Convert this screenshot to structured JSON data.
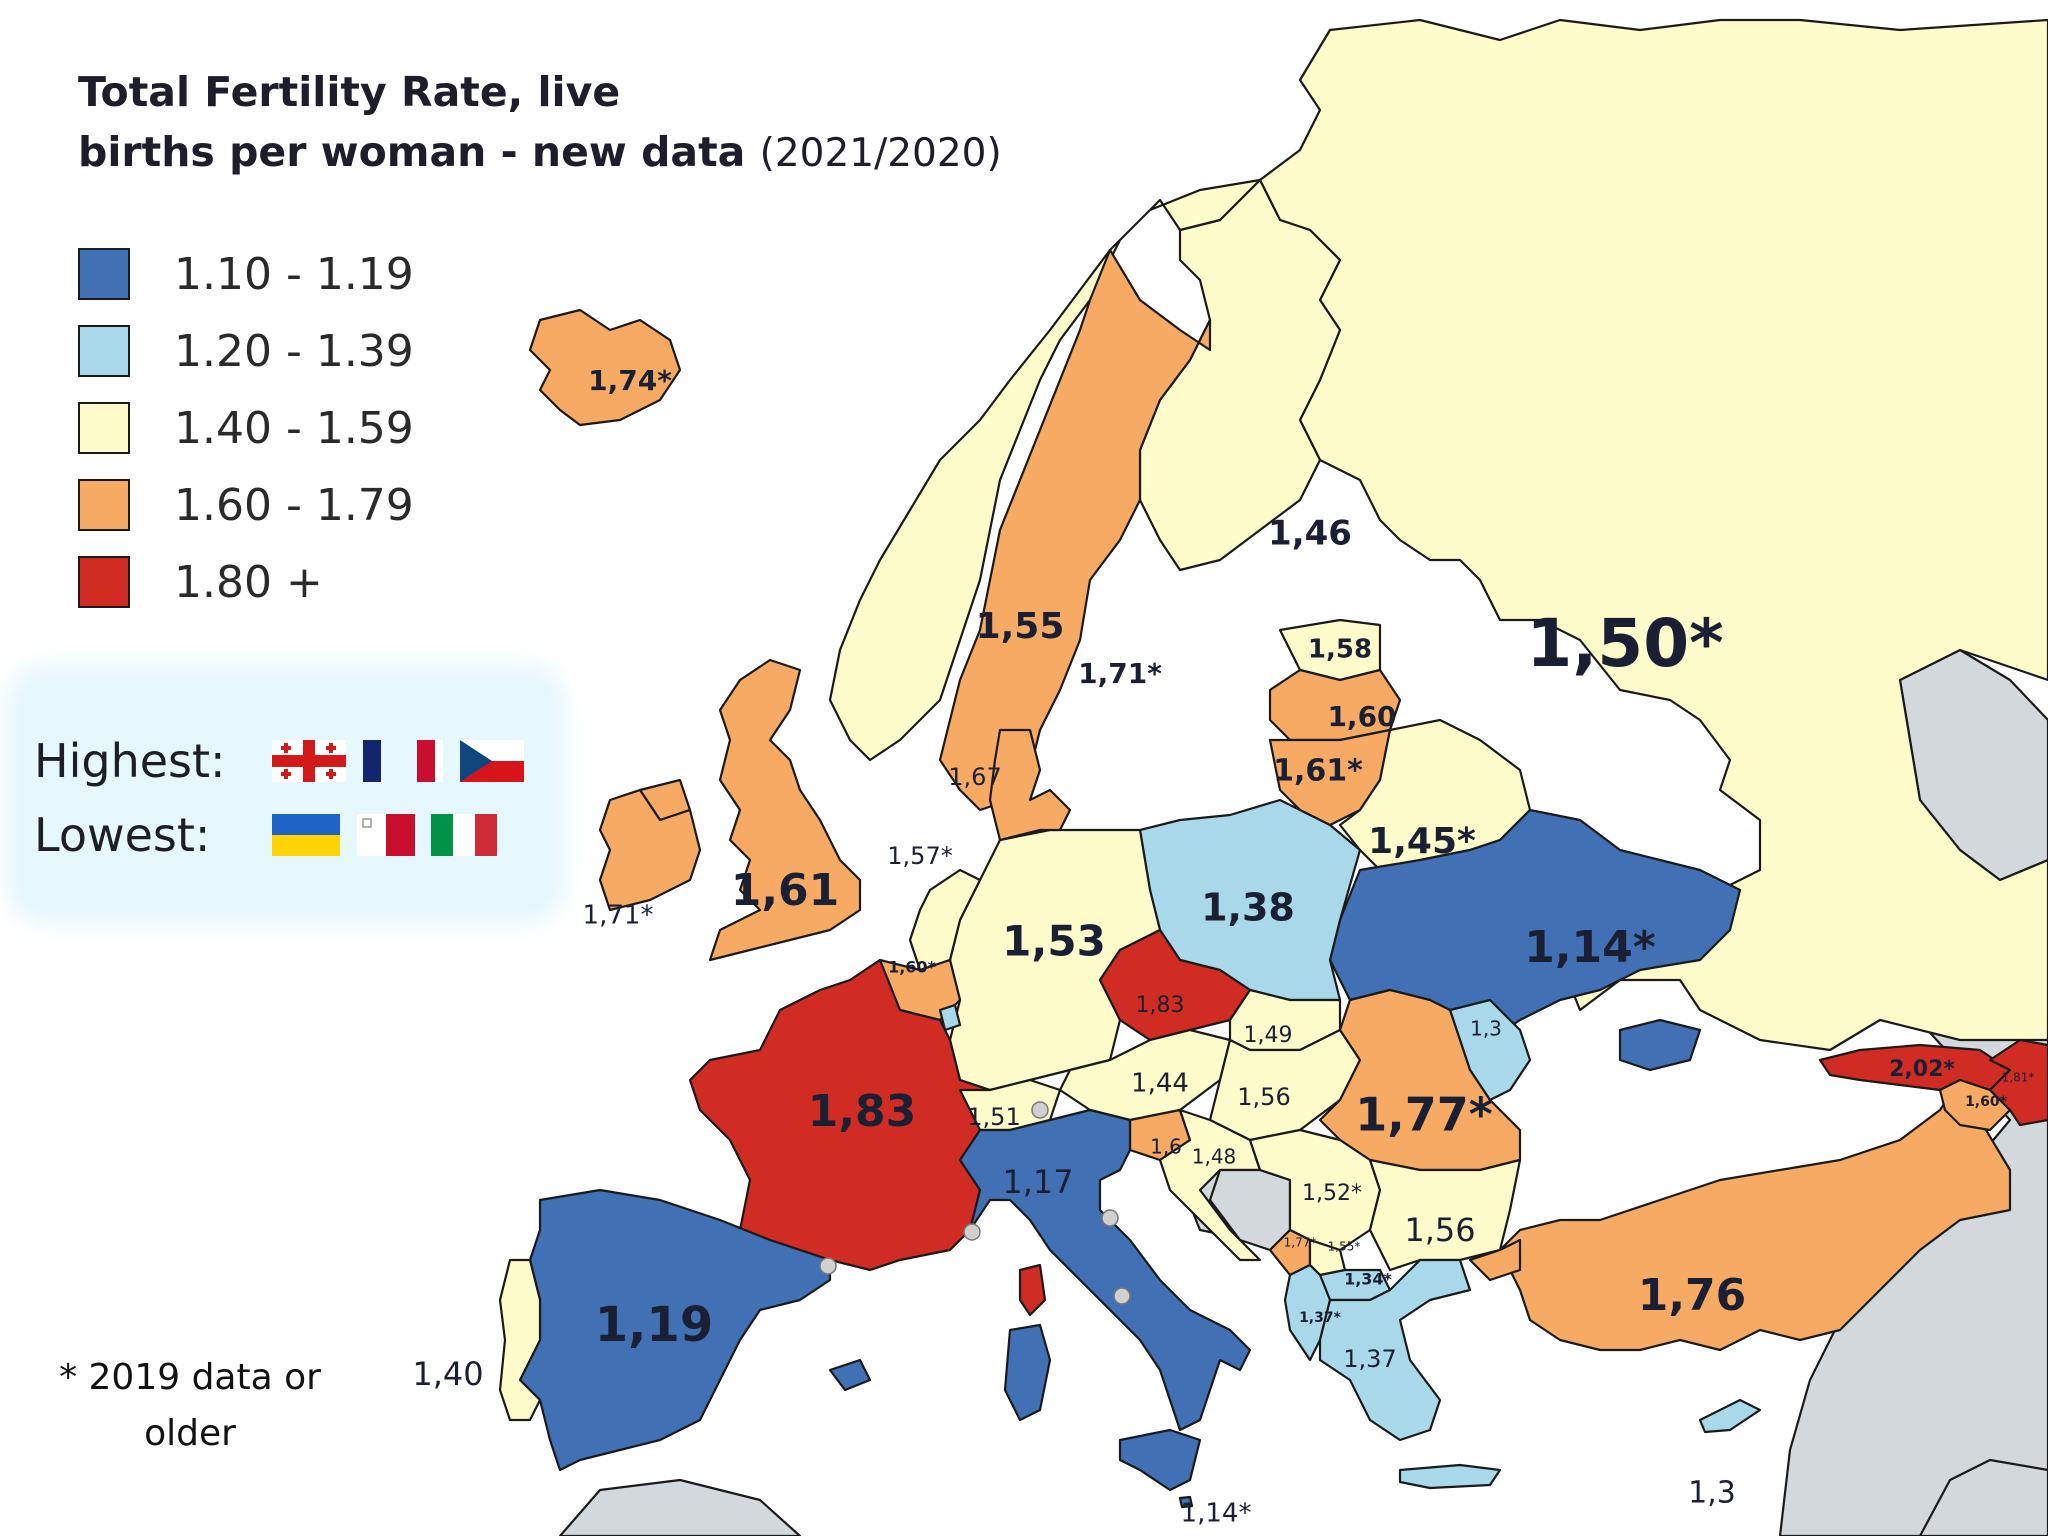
{
  "title": {
    "line1": "Total Fertility Rate, live",
    "line2": "births per woman - new data",
    "years": "(2021/2020)"
  },
  "legend": [
    {
      "label": "1.10 - 1.19",
      "color": "#4170b4"
    },
    {
      "label": "1.20 - 1.39",
      "color": "#a9d8ea"
    },
    {
      "label": "1.40 - 1.59",
      "color": "#fefccb"
    },
    {
      "label": "1.60 - 1.79",
      "color": "#f7aa63"
    },
    {
      "label": "1.80 +",
      "color": "#d12c24"
    }
  ],
  "highlights": {
    "highest_label": "Highest:",
    "lowest_label": "Lowest:",
    "highest_flags": [
      "georgia-flag",
      "france-flag",
      "czechia-flag"
    ],
    "lowest_flags": [
      "ukraine-flag",
      "malta-flag",
      "italy-flag"
    ]
  },
  "footnote": {
    "line1": "* 2019 data or",
    "line2": "older"
  },
  "values": {
    "iceland": "1,74*",
    "norway": "1,55",
    "sweden": "1,71*",
    "finland": "1,46",
    "russia": "1,50*",
    "estonia": "1,58",
    "latvia": "1,60",
    "lithuania": "1,61*",
    "belarus": "1,45*",
    "ireland": "1,71*",
    "uk": "1,61",
    "denmark": "1,67",
    "netherlands": "1,57*",
    "belgium": "1,60*",
    "germany": "1,53",
    "poland": "1,38",
    "ukraine": "1,14*",
    "moldova": "1,3",
    "czechia": "1,83",
    "slovakia": "1,49",
    "austria": "1,44",
    "hungary": "1,56",
    "romania": "1,77*",
    "switzerland": "1,51",
    "france": "1,83",
    "italy": "1,17",
    "slovenia": "1,6",
    "croatia": "1,48",
    "serbia": "1,52*",
    "bulgaria": "1,56",
    "montenegro": "1,77*",
    "kosovo": "1,55*",
    "north_macedonia": "1,34*",
    "albania": "1,37*",
    "greece": "1,37",
    "turkey": "1,76",
    "georgia": "2,02*",
    "azerbaijan": "1,81*",
    "armenia": "1,60*",
    "spain": "1,19",
    "portugal": "1,40",
    "malta": "1,14*",
    "cyprus": "1,3"
  }
}
